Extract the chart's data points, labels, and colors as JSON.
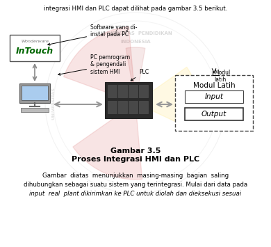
{
  "background_color": "#ffffff",
  "top_text": "integrasi HMI dan PLC dapat dilihat pada gambar 3.5 berikut.",
  "title1": "Gambar 3.5",
  "title2": "Proses Integrasi HMI dan PLC",
  "bottom_text1": "Gambar  diatas  menunjukkan  masing-masing  bagian  saling",
  "bottom_text2": "dihubungkan sebagai suatu sistem yang terintegrasi. Mulai dari data pada",
  "bottom_text3": "input  real  plant dikirimkan ke PLC untuk diolah dan dieksekusi sesuai",
  "label_software": "Software yang di-\ninstal pada PC",
  "label_pc": "PC pemrogram\n& pengendali\nsistem HMI",
  "label_plc": "PLC",
  "label_modul": "Modul\nlatih",
  "label_modul_box": "Modul Latih",
  "label_input": "Input",
  "label_output": "Output",
  "intouch_line1": "Wonderware",
  "intouch_line2": "InTouch",
  "watermark_color": "#cccccc",
  "fig_width": 3.9,
  "fig_height": 3.55,
  "dpi": 100
}
